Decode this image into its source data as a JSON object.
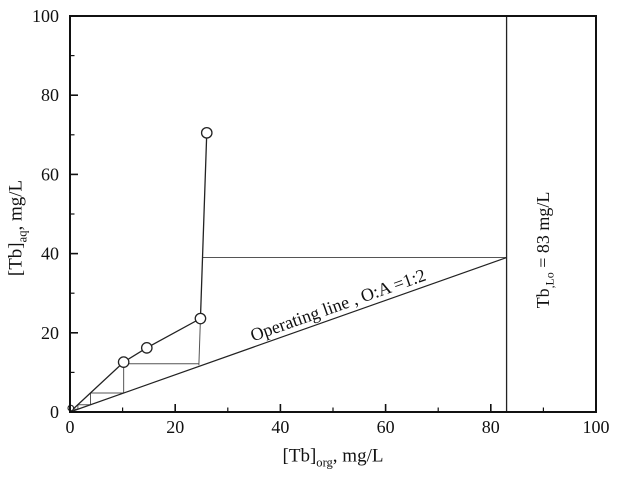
{
  "figure": {
    "background": "#ffffff",
    "frame_color": "#111111",
    "curve_color": "#222222",
    "staircase_color": "#555555"
  },
  "chart_data": {
    "type": "line",
    "title": "",
    "xlabel": {
      "segments": [
        {
          "t": "[Tb]"
        },
        {
          "t": "org",
          "sub": true
        },
        {
          "t": ", mg/L"
        }
      ]
    },
    "ylabel": {
      "segments": [
        {
          "t": "[Tb]"
        },
        {
          "t": "aq",
          "sub": true
        },
        {
          "t": ", mg/L"
        }
      ]
    },
    "xlim": [
      0,
      100
    ],
    "ylim": [
      0,
      100
    ],
    "x_ticks": [
      0,
      20,
      40,
      60,
      80,
      100
    ],
    "y_ticks": [
      0,
      20,
      40,
      60,
      80,
      100
    ],
    "x_minor_ticks": [
      10,
      30,
      50,
      70,
      90
    ],
    "y_minor_ticks": [
      10,
      30,
      50,
      70,
      90
    ],
    "grid": false,
    "legend": "none",
    "series": [
      {
        "name": "equilibrium-isotherm",
        "type": "line+marker",
        "marker": "circle",
        "width": 1.3,
        "points": [
          [
            0,
            0
          ],
          [
            10.2,
            12.6
          ],
          [
            14.6,
            16.2
          ],
          [
            24.8,
            23.6
          ],
          [
            26.0,
            70.5
          ]
        ]
      },
      {
        "name": "operating-line",
        "type": "line",
        "width": 1.2,
        "points": [
          [
            0,
            0
          ],
          [
            83,
            39
          ]
        ]
      },
      {
        "name": "organic-loading-line",
        "type": "line",
        "width": 1.3,
        "points": [
          [
            83,
            0
          ],
          [
            83,
            100
          ]
        ]
      }
    ],
    "origin_marker": [
      0.15,
      1.0
    ],
    "staircase": [
      [
        25.2,
        39,
        83,
        39
      ],
      [
        24.8,
        23.6,
        24.5,
        11.8
      ],
      [
        24.5,
        12.2,
        10.2,
        12.2
      ],
      [
        10.2,
        12.2,
        10.2,
        4.8
      ],
      [
        10.2,
        4.8,
        3.9,
        4.8
      ],
      [
        3.9,
        4.8,
        3.9,
        1.83
      ],
      [
        3.9,
        1.83,
        1.5,
        1.83
      ],
      [
        1.5,
        1.83,
        1.5,
        0.7
      ],
      [
        1.5,
        0.7,
        0.57,
        0.7
      ]
    ],
    "annotations": [
      {
        "name": "operating-line-label",
        "segments": [
          {
            "t": "Operating line , O:A =1:2"
          }
        ],
        "x": 51,
        "y": 27,
        "rotation": -19.5
      },
      {
        "name": "loading-capacity-label",
        "segments": [
          {
            "t": "Tb"
          },
          {
            "t": ",Lo",
            "sub": true
          },
          {
            "t": " = 83 mg/L"
          }
        ],
        "x": 90,
        "y": 41,
        "rotation": -90
      }
    ]
  }
}
